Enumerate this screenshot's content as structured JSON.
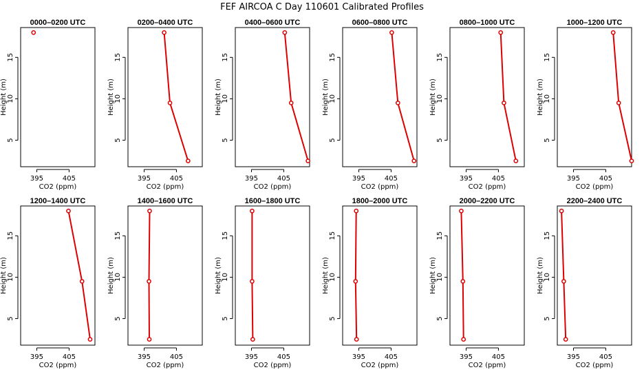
{
  "title": "FEF AIRCOA C  Day 110601  Calibrated Profiles",
  "colors": {
    "series": "#dd0000",
    "axes": "#000000",
    "background": "#ffffff"
  },
  "chart_data": [
    {
      "type": "line",
      "title": "0000–0200 UTC",
      "xlabel": "CO2 (ppm)",
      "ylabel": "Height (m)",
      "xlim": [
        390,
        413
      ],
      "ylim": [
        1.8,
        18.6
      ],
      "xticks": [
        395,
        405
      ],
      "yticks": [
        5,
        10,
        15
      ],
      "x": [
        394.0
      ],
      "y": [
        18.0
      ]
    },
    {
      "type": "line",
      "title": "0200–0400 UTC",
      "xlabel": "CO2 (ppm)",
      "ylabel": "Height (m)",
      "xlim": [
        390,
        413
      ],
      "ylim": [
        1.8,
        18.6
      ],
      "xticks": [
        395,
        405
      ],
      "yticks": [
        5,
        10,
        15
      ],
      "x": [
        401.2,
        403.0,
        408.6
      ],
      "y": [
        18.0,
        9.5,
        2.5
      ]
    },
    {
      "type": "line",
      "title": "0400–0600 UTC",
      "xlabel": "CO2 (ppm)",
      "ylabel": "Height (m)",
      "xlim": [
        390,
        413
      ],
      "ylim": [
        1.8,
        18.6
      ],
      "xticks": [
        395,
        405
      ],
      "yticks": [
        5,
        10,
        15
      ],
      "x": [
        405.3,
        407.3,
        412.5
      ],
      "y": [
        18.0,
        9.5,
        2.5
      ]
    },
    {
      "type": "line",
      "title": "0600–0800 UTC",
      "xlabel": "CO2 (ppm)",
      "ylabel": "Height (m)",
      "xlim": [
        390,
        413
      ],
      "ylim": [
        1.8,
        18.6
      ],
      "xticks": [
        395,
        405
      ],
      "yticks": [
        5,
        10,
        15
      ],
      "x": [
        405.2,
        407.1,
        412.1
      ],
      "y": [
        18.0,
        9.5,
        2.5
      ]
    },
    {
      "type": "line",
      "title": "0800–1000 UTC",
      "xlabel": "CO2 (ppm)",
      "ylabel": "Height (m)",
      "xlim": [
        390,
        413
      ],
      "ylim": [
        1.8,
        18.6
      ],
      "xticks": [
        395,
        405
      ],
      "yticks": [
        5,
        10,
        15
      ],
      "x": [
        405.7,
        406.7,
        410.4
      ],
      "y": [
        18.0,
        9.5,
        2.5
      ]
    },
    {
      "type": "line",
      "title": "1000–1200 UTC",
      "xlabel": "CO2 (ppm)",
      "ylabel": "Height (m)",
      "xlim": [
        390,
        413
      ],
      "ylim": [
        1.8,
        18.6
      ],
      "xticks": [
        395,
        405
      ],
      "yticks": [
        5,
        10,
        15
      ],
      "x": [
        407.3,
        409.0,
        413.0
      ],
      "y": [
        18.0,
        9.5,
        2.5
      ]
    },
    {
      "type": "line",
      "title": "1200–1400 UTC",
      "xlabel": "CO2 (ppm)",
      "ylabel": "Height (m)",
      "xlim": [
        390,
        413
      ],
      "ylim": [
        1.8,
        18.6
      ],
      "xticks": [
        395,
        405
      ],
      "yticks": [
        5,
        10,
        15
      ],
      "x": [
        404.8,
        409.0,
        411.5
      ],
      "y": [
        18.0,
        9.5,
        2.5
      ]
    },
    {
      "type": "line",
      "title": "1400–1600 UTC",
      "xlabel": "CO2 (ppm)",
      "ylabel": "Height (m)",
      "xlim": [
        390,
        413
      ],
      "ylim": [
        1.8,
        18.6
      ],
      "xticks": [
        395,
        405
      ],
      "yticks": [
        5,
        10,
        15
      ],
      "x": [
        396.7,
        396.5,
        396.6
      ],
      "y": [
        18.0,
        9.5,
        2.5
      ]
    },
    {
      "type": "line",
      "title": "1600–1800 UTC",
      "xlabel": "CO2 (ppm)",
      "ylabel": "Height (m)",
      "xlim": [
        390,
        413
      ],
      "ylim": [
        1.8,
        18.6
      ],
      "xticks": [
        395,
        405
      ],
      "yticks": [
        5,
        10,
        15
      ],
      "x": [
        395.2,
        395.2,
        395.4
      ],
      "y": [
        18.0,
        9.5,
        2.5
      ]
    },
    {
      "type": "line",
      "title": "1800–2000 UTC",
      "xlabel": "CO2 (ppm)",
      "ylabel": "Height (m)",
      "xlim": [
        390,
        413
      ],
      "ylim": [
        1.8,
        18.6
      ],
      "xticks": [
        395,
        405
      ],
      "yticks": [
        5,
        10,
        15
      ],
      "x": [
        394.2,
        394.0,
        394.3
      ],
      "y": [
        18.0,
        9.5,
        2.5
      ]
    },
    {
      "type": "line",
      "title": "2000–2200 UTC",
      "xlabel": "CO2 (ppm)",
      "ylabel": "Height (m)",
      "xlim": [
        390,
        413
      ],
      "ylim": [
        1.8,
        18.6
      ],
      "xticks": [
        395,
        405
      ],
      "yticks": [
        5,
        10,
        15
      ],
      "x": [
        393.5,
        394.0,
        394.2
      ],
      "y": [
        18.0,
        9.5,
        2.5
      ]
    },
    {
      "type": "line",
      "title": "2200–2400 UTC",
      "xlabel": "CO2 (ppm)",
      "ylabel": "Height (m)",
      "xlim": [
        390,
        413
      ],
      "ylim": [
        1.8,
        18.6
      ],
      "xticks": [
        395,
        405
      ],
      "yticks": [
        5,
        10,
        15
      ],
      "x": [
        391.3,
        392.0,
        392.6
      ],
      "y": [
        18.0,
        9.5,
        2.5
      ]
    }
  ]
}
